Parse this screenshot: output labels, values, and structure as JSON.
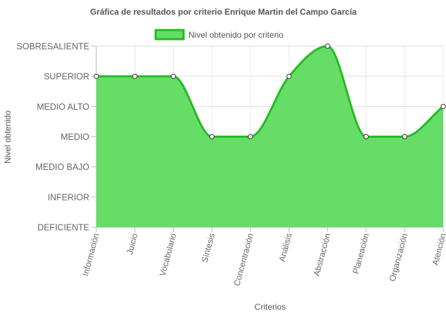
{
  "chart_data": {
    "type": "area",
    "title": "Gráfica de resultados por criterio Enrique Martin del Campo García",
    "xlabel": "Criterios",
    "ylabel": "Nivel obtenido",
    "y_levels": [
      "DEFICIENTE",
      "INFERIOR",
      "MEDIO BAJO",
      "MEDIO",
      "MEDIO ALTO",
      "SUPERIOR",
      "SOBRESALIENTE"
    ],
    "ylim": [
      0,
      6
    ],
    "categories": [
      "Información",
      "Juicio",
      "Vocabulario",
      "Síntesis",
      "Concentración",
      "Análisis",
      "Abstracción",
      "Planeación",
      "Organización",
      "Atención"
    ],
    "series": [
      {
        "name": "Nivel obtenido por criterio",
        "values": [
          5,
          5,
          5,
          3,
          3,
          5,
          6,
          3,
          3,
          4
        ],
        "fill_color": "#66dd66",
        "line_color": "#22bb22"
      }
    ],
    "grid": true,
    "legend": "top-center"
  }
}
